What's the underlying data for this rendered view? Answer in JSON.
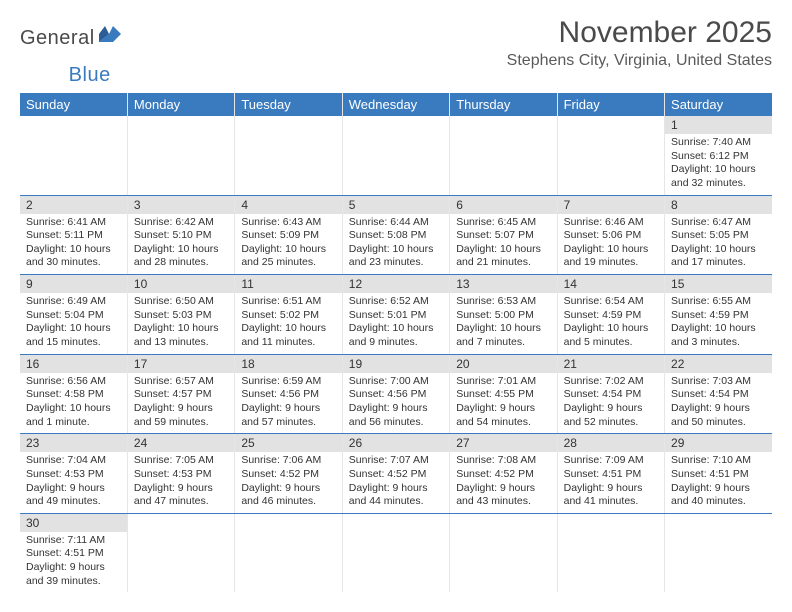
{
  "logo": {
    "general": "General",
    "blue": "Blue"
  },
  "title": "November 2025",
  "location": "Stephens City, Virginia, United States",
  "colors": {
    "header_bg": "#3a7bbf",
    "header_text": "#ffffff",
    "daynum_bg": "#e2e2e2",
    "border_blue": "#3a7bbf",
    "border_light": "#e6e6e6",
    "text": "#333333",
    "logo_blue": "#3a7bbf",
    "logo_gray": "#4a4a4a"
  },
  "weekdays": [
    "Sunday",
    "Monday",
    "Tuesday",
    "Wednesday",
    "Thursday",
    "Friday",
    "Saturday"
  ],
  "weeks": [
    [
      null,
      null,
      null,
      null,
      null,
      null,
      {
        "n": "1",
        "sr": "7:40 AM",
        "ss": "6:12 PM",
        "dl": "10 hours and 32 minutes."
      }
    ],
    [
      {
        "n": "2",
        "sr": "6:41 AM",
        "ss": "5:11 PM",
        "dl": "10 hours and 30 minutes."
      },
      {
        "n": "3",
        "sr": "6:42 AM",
        "ss": "5:10 PM",
        "dl": "10 hours and 28 minutes."
      },
      {
        "n": "4",
        "sr": "6:43 AM",
        "ss": "5:09 PM",
        "dl": "10 hours and 25 minutes."
      },
      {
        "n": "5",
        "sr": "6:44 AM",
        "ss": "5:08 PM",
        "dl": "10 hours and 23 minutes."
      },
      {
        "n": "6",
        "sr": "6:45 AM",
        "ss": "5:07 PM",
        "dl": "10 hours and 21 minutes."
      },
      {
        "n": "7",
        "sr": "6:46 AM",
        "ss": "5:06 PM",
        "dl": "10 hours and 19 minutes."
      },
      {
        "n": "8",
        "sr": "6:47 AM",
        "ss": "5:05 PM",
        "dl": "10 hours and 17 minutes."
      }
    ],
    [
      {
        "n": "9",
        "sr": "6:49 AM",
        "ss": "5:04 PM",
        "dl": "10 hours and 15 minutes."
      },
      {
        "n": "10",
        "sr": "6:50 AM",
        "ss": "5:03 PM",
        "dl": "10 hours and 13 minutes."
      },
      {
        "n": "11",
        "sr": "6:51 AM",
        "ss": "5:02 PM",
        "dl": "10 hours and 11 minutes."
      },
      {
        "n": "12",
        "sr": "6:52 AM",
        "ss": "5:01 PM",
        "dl": "10 hours and 9 minutes."
      },
      {
        "n": "13",
        "sr": "6:53 AM",
        "ss": "5:00 PM",
        "dl": "10 hours and 7 minutes."
      },
      {
        "n": "14",
        "sr": "6:54 AM",
        "ss": "4:59 PM",
        "dl": "10 hours and 5 minutes."
      },
      {
        "n": "15",
        "sr": "6:55 AM",
        "ss": "4:59 PM",
        "dl": "10 hours and 3 minutes."
      }
    ],
    [
      {
        "n": "16",
        "sr": "6:56 AM",
        "ss": "4:58 PM",
        "dl": "10 hours and 1 minute."
      },
      {
        "n": "17",
        "sr": "6:57 AM",
        "ss": "4:57 PM",
        "dl": "9 hours and 59 minutes."
      },
      {
        "n": "18",
        "sr": "6:59 AM",
        "ss": "4:56 PM",
        "dl": "9 hours and 57 minutes."
      },
      {
        "n": "19",
        "sr": "7:00 AM",
        "ss": "4:56 PM",
        "dl": "9 hours and 56 minutes."
      },
      {
        "n": "20",
        "sr": "7:01 AM",
        "ss": "4:55 PM",
        "dl": "9 hours and 54 minutes."
      },
      {
        "n": "21",
        "sr": "7:02 AM",
        "ss": "4:54 PM",
        "dl": "9 hours and 52 minutes."
      },
      {
        "n": "22",
        "sr": "7:03 AM",
        "ss": "4:54 PM",
        "dl": "9 hours and 50 minutes."
      }
    ],
    [
      {
        "n": "23",
        "sr": "7:04 AM",
        "ss": "4:53 PM",
        "dl": "9 hours and 49 minutes."
      },
      {
        "n": "24",
        "sr": "7:05 AM",
        "ss": "4:53 PM",
        "dl": "9 hours and 47 minutes."
      },
      {
        "n": "25",
        "sr": "7:06 AM",
        "ss": "4:52 PM",
        "dl": "9 hours and 46 minutes."
      },
      {
        "n": "26",
        "sr": "7:07 AM",
        "ss": "4:52 PM",
        "dl": "9 hours and 44 minutes."
      },
      {
        "n": "27",
        "sr": "7:08 AM",
        "ss": "4:52 PM",
        "dl": "9 hours and 43 minutes."
      },
      {
        "n": "28",
        "sr": "7:09 AM",
        "ss": "4:51 PM",
        "dl": "9 hours and 41 minutes."
      },
      {
        "n": "29",
        "sr": "7:10 AM",
        "ss": "4:51 PM",
        "dl": "9 hours and 40 minutes."
      }
    ],
    [
      {
        "n": "30",
        "sr": "7:11 AM",
        "ss": "4:51 PM",
        "dl": "9 hours and 39 minutes."
      },
      null,
      null,
      null,
      null,
      null,
      null
    ]
  ],
  "labels": {
    "sunrise": "Sunrise:",
    "sunset": "Sunset:",
    "daylight": "Daylight:"
  }
}
